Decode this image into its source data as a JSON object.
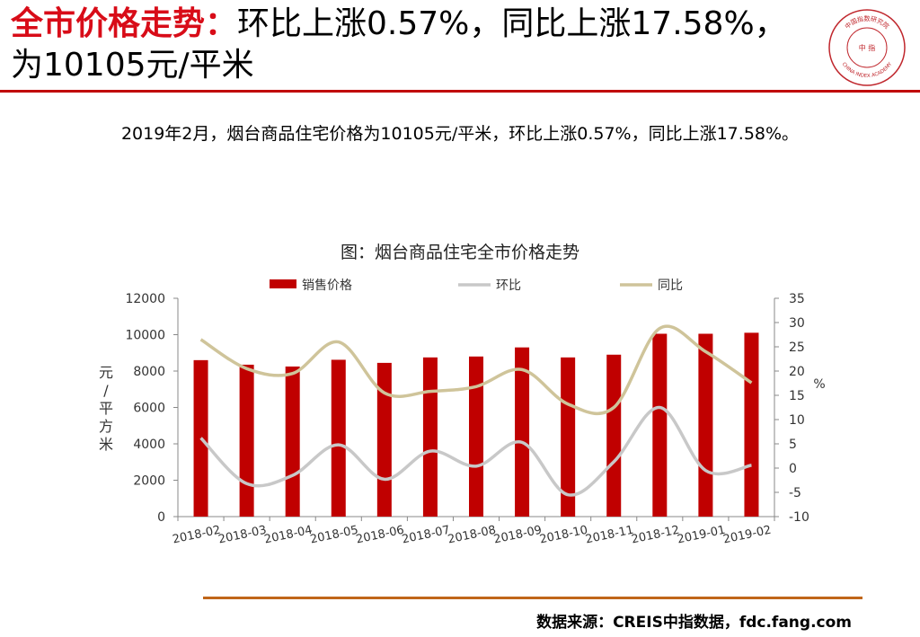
{
  "header": {
    "title_highlight": "全市价格走势：",
    "title_rest": "环比上涨0.57%，同比上涨17.58%，为10105元/平米"
  },
  "logo": {
    "text_top": "中国指数研究院",
    "text_bottom": "CHINA INDEX ACADEMY",
    "center_text": "中 指",
    "color": "#c0272d"
  },
  "summary": "2019年2月，烟台商品住宅价格为10105元/平米，环比上涨0.57%，同比上涨17.58%。",
  "chart_data": {
    "type": "bar",
    "title": "图：烟台商品住宅全市价格走势",
    "categories": [
      "2018-02",
      "2018-03",
      "2018-04",
      "2018-05",
      "2018-06",
      "2018-07",
      "2018-08",
      "2018-09",
      "2018-10",
      "2018-11",
      "2018-12",
      "2019-01",
      "2019-02"
    ],
    "series": [
      {
        "name": "销售价格",
        "kind": "bar",
        "axis": "left",
        "color": "#c00000",
        "values": [
          8600,
          8350,
          8250,
          8620,
          8450,
          8750,
          8800,
          9300,
          8750,
          8900,
          10050,
          10050,
          10105
        ]
      },
      {
        "name": "环比",
        "kind": "line",
        "axis": "right",
        "color": "#c8c8c8",
        "values": [
          6.2,
          -3.2,
          -1.5,
          4.8,
          -2.3,
          3.5,
          0.4,
          5.3,
          -5.5,
          1.3,
          12.5,
          -0.5,
          0.57
        ]
      },
      {
        "name": "同比",
        "kind": "line",
        "axis": "right",
        "color": "#cfc49a",
        "values": [
          26.5,
          20.5,
          19.5,
          26,
          15.5,
          15.8,
          16.8,
          20.3,
          13.2,
          12.5,
          28.8,
          24,
          17.58
        ]
      }
    ],
    "y_left": {
      "label": "元/平方米",
      "ylim": [
        0,
        12000
      ],
      "ticks": [
        0,
        2000,
        4000,
        6000,
        8000,
        10000,
        12000
      ]
    },
    "y_right": {
      "label": "%",
      "ylim": [
        -10,
        35
      ],
      "ticks": [
        -10,
        -5,
        0,
        5,
        10,
        15,
        20,
        25,
        30,
        35
      ]
    },
    "legend_position": "top",
    "grid": false
  },
  "footer": {
    "source": "数据来源：CREIS中指数据，fdc.fang.com"
  }
}
